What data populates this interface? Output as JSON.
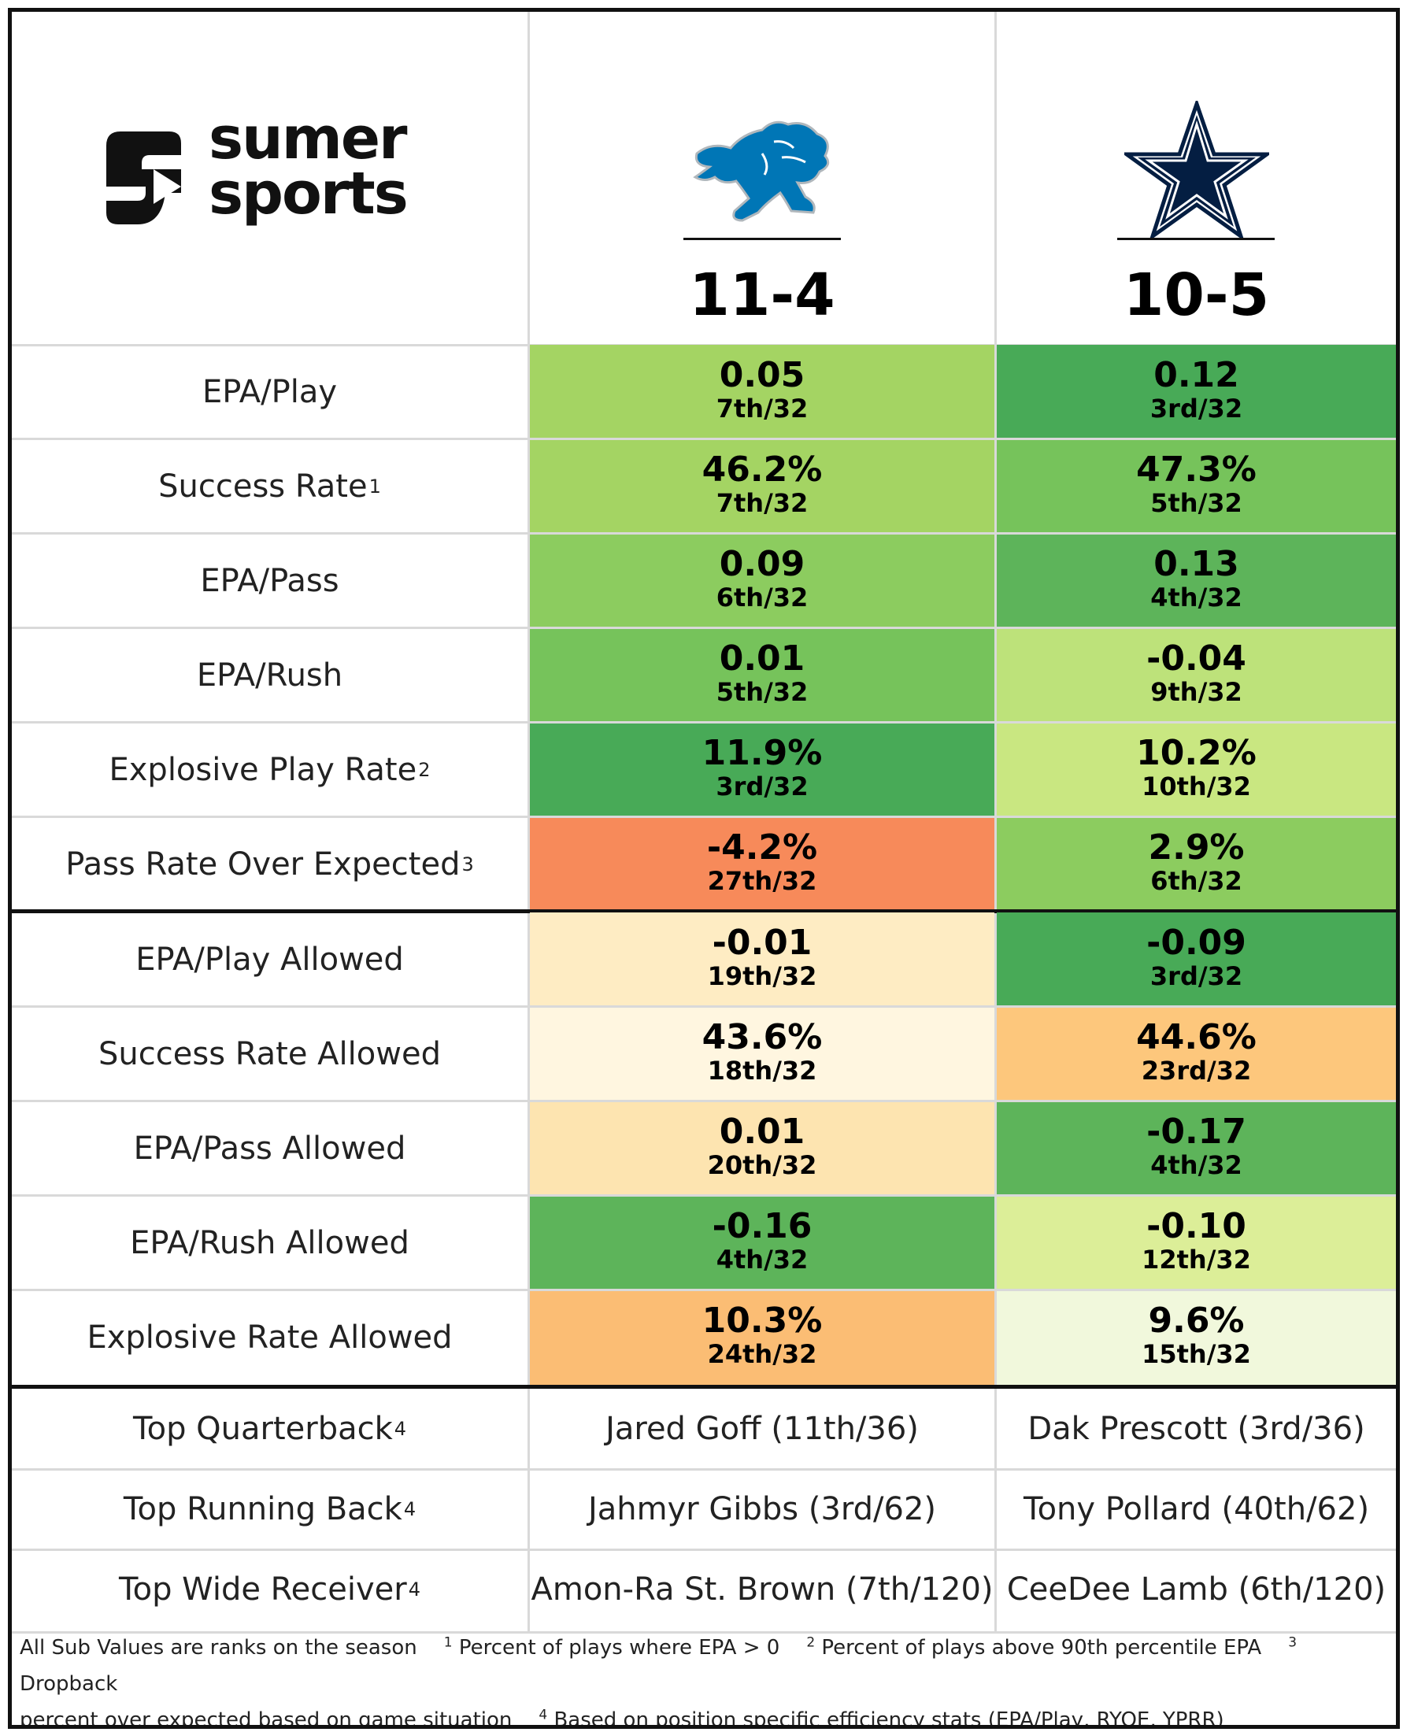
{
  "brand": {
    "line1": "sumer",
    "line2": "sports"
  },
  "teams": [
    {
      "name": "Detroit Lions",
      "record": "11-4",
      "logo_icon": "lion-icon",
      "color": "#0076B6"
    },
    {
      "name": "Dallas Cowboys",
      "record": "10-5",
      "logo_icon": "star-icon",
      "color": "#041E42"
    }
  ],
  "offense": [
    {
      "label": "EPA/Play",
      "note": "",
      "cells": [
        {
          "value": "0.05",
          "rank": "7th/32",
          "color": "#a4d463"
        },
        {
          "value": "0.12",
          "rank": "3rd/32",
          "color": "#48aa57"
        }
      ]
    },
    {
      "label": "Success Rate",
      "note": "1",
      "cells": [
        {
          "value": "46.2%",
          "rank": "7th/32",
          "color": "#a4d463"
        },
        {
          "value": "47.3%",
          "rank": "5th/32",
          "color": "#76c35b"
        }
      ]
    },
    {
      "label": "EPA/Pass",
      "note": "",
      "cells": [
        {
          "value": "0.09",
          "rank": "6th/32",
          "color": "#8ccc5f"
        },
        {
          "value": "0.13",
          "rank": "4th/32",
          "color": "#5db45a"
        }
      ]
    },
    {
      "label": "EPA/Rush",
      "note": "",
      "cells": [
        {
          "value": "0.01",
          "rank": "5th/32",
          "color": "#76c35b"
        },
        {
          "value": "-0.04",
          "rank": "9th/32",
          "color": "#bde27a"
        }
      ]
    },
    {
      "label": "Explosive Play Rate",
      "note": "2",
      "cells": [
        {
          "value": "11.9%",
          "rank": "3rd/32",
          "color": "#48aa57"
        },
        {
          "value": "10.2%",
          "rank": "10th/32",
          "color": "#c9e781"
        }
      ]
    },
    {
      "label": "Pass Rate Over Expected",
      "note": "3",
      "cells": [
        {
          "value": "-4.2%",
          "rank": "27th/32",
          "color": "#f78a5a"
        },
        {
          "value": "2.9%",
          "rank": "6th/32",
          "color": "#8ccc5f"
        }
      ]
    }
  ],
  "defense": [
    {
      "label": "EPA/Play Allowed",
      "note": "",
      "cells": [
        {
          "value": "-0.01",
          "rank": "19th/32",
          "color": "#feecc3"
        },
        {
          "value": "-0.09",
          "rank": "3rd/32",
          "color": "#48aa57"
        }
      ]
    },
    {
      "label": "Success Rate Allowed",
      "note": "",
      "cells": [
        {
          "value": "43.6%",
          "rank": "18th/32",
          "color": "#fff6e0"
        },
        {
          "value": "44.6%",
          "rank": "23rd/32",
          "color": "#fdc77c"
        }
      ]
    },
    {
      "label": "EPA/Pass Allowed",
      "note": "",
      "cells": [
        {
          "value": "0.01",
          "rank": "20th/32",
          "color": "#fde4b0"
        },
        {
          "value": "-0.17",
          "rank": "4th/32",
          "color": "#5db45a"
        }
      ]
    },
    {
      "label": "EPA/Rush Allowed",
      "note": "",
      "cells": [
        {
          "value": "-0.16",
          "rank": "4th/32",
          "color": "#5db45a"
        },
        {
          "value": "-0.10",
          "rank": "12th/32",
          "color": "#dcee98"
        }
      ]
    },
    {
      "label": "Explosive Rate Allowed",
      "note": "",
      "cells": [
        {
          "value": "10.3%",
          "rank": "24th/32",
          "color": "#fbbd74"
        },
        {
          "value": "9.6%",
          "rank": "15th/32",
          "color": "#f1f8dc"
        }
      ]
    }
  ],
  "players": [
    {
      "label": "Top Quarterback",
      "note": "4",
      "values": [
        "Jared Goff (11th/36)",
        "Dak Prescott (3rd/36)"
      ]
    },
    {
      "label": "Top Running Back",
      "note": "4",
      "values": [
        "Jahmyr Gibbs (3rd/62)",
        "Tony Pollard (40th/62)"
      ]
    },
    {
      "label": "Top Wide Receiver",
      "note": "4",
      "values": [
        "Amon-Ra St. Brown (7th/120)",
        "CeeDee Lamb (6th/120)"
      ]
    }
  ],
  "footer": {
    "line1": [
      {
        "sup": "",
        "text": "All Sub Values are ranks on the season"
      },
      {
        "sup": "1",
        "text": "Percent of plays where EPA > 0"
      },
      {
        "sup": "2",
        "text": "Percent of plays above 90th percentile EPA"
      },
      {
        "sup": "3",
        "text": "Dropback"
      }
    ],
    "line2": [
      {
        "sup": "",
        "text": "percent over expected based on game situation"
      },
      {
        "sup": "4",
        "text": "Based on position specific efficiency stats (EPA/Play, RYOE, YPRR)"
      }
    ]
  }
}
